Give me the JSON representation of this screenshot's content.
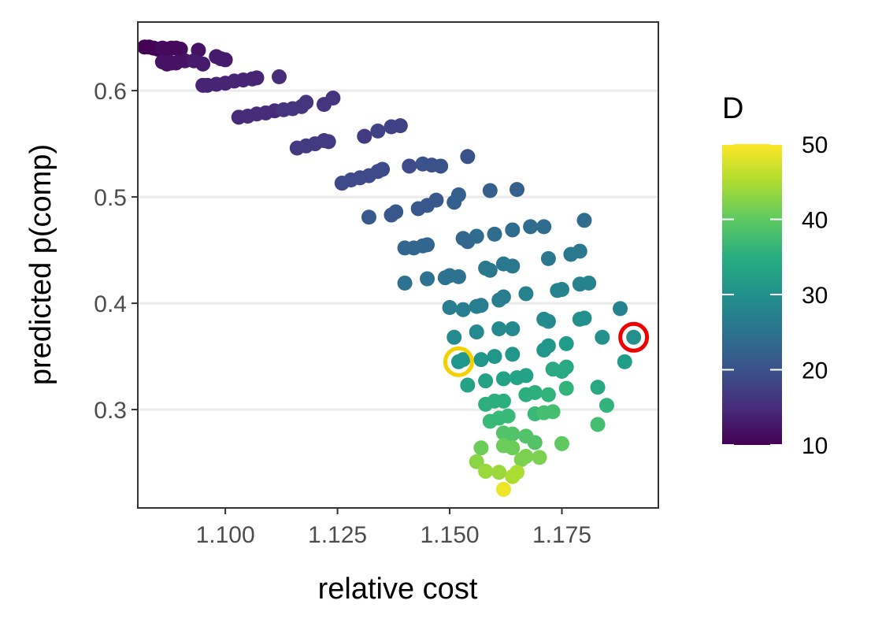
{
  "chart_data": {
    "type": "scatter",
    "title": "",
    "xlabel": "relative cost",
    "ylabel": "predicted p(comp)",
    "xlim": [
      1.0805,
      1.1965
    ],
    "ylim": [
      0.2075,
      0.6645
    ],
    "x_ticks": [
      1.1,
      1.125,
      1.15,
      1.175
    ],
    "x_tick_labels": [
      "1.100",
      "1.125",
      "1.150",
      "1.175"
    ],
    "y_ticks": [
      0.3,
      0.4,
      0.5,
      0.6
    ],
    "y_tick_labels": [
      "0.3",
      "0.4",
      "0.5",
      "0.6"
    ],
    "grid": "horizontal major lines",
    "legend": {
      "title": "D",
      "position": "right",
      "type": "colorbar",
      "colormap": "viridis",
      "range": [
        10,
        50
      ],
      "ticks": [
        10,
        20,
        30,
        40,
        50
      ],
      "tick_labels": [
        "10",
        "20",
        "30",
        "40",
        "50"
      ]
    },
    "highlights": [
      {
        "x": 1.152,
        "y": 0.345,
        "color": "#f5d000"
      },
      {
        "x": 1.191,
        "y": 0.368,
        "color": "#ee0000"
      }
    ],
    "points": [
      [
        1.082,
        0.641,
        10
      ],
      [
        1.083,
        0.641,
        10
      ],
      [
        1.084,
        0.64,
        10
      ],
      [
        1.085,
        0.639,
        10
      ],
      [
        1.086,
        0.64,
        11
      ],
      [
        1.087,
        0.639,
        11
      ],
      [
        1.088,
        0.64,
        11
      ],
      [
        1.089,
        0.64,
        11
      ],
      [
        1.09,
        0.639,
        11
      ],
      [
        1.094,
        0.638,
        12
      ],
      [
        1.086,
        0.627,
        12
      ],
      [
        1.087,
        0.625,
        12
      ],
      [
        1.088,
        0.626,
        12
      ],
      [
        1.089,
        0.626,
        12
      ],
      [
        1.091,
        0.628,
        12
      ],
      [
        1.093,
        0.628,
        13
      ],
      [
        1.095,
        0.625,
        13
      ],
      [
        1.098,
        0.632,
        13
      ],
      [
        1.099,
        0.63,
        13
      ],
      [
        1.1,
        0.629,
        13
      ],
      [
        1.095,
        0.605,
        14
      ],
      [
        1.096,
        0.605,
        14
      ],
      [
        1.098,
        0.606,
        14
      ],
      [
        1.1,
        0.607,
        14
      ],
      [
        1.102,
        0.609,
        14
      ],
      [
        1.104,
        0.61,
        14
      ],
      [
        1.106,
        0.611,
        14
      ],
      [
        1.107,
        0.612,
        14
      ],
      [
        1.112,
        0.613,
        15
      ],
      [
        1.103,
        0.575,
        15
      ],
      [
        1.105,
        0.576,
        15
      ],
      [
        1.107,
        0.578,
        15
      ],
      [
        1.109,
        0.579,
        15
      ],
      [
        1.111,
        0.581,
        15
      ],
      [
        1.113,
        0.582,
        16
      ],
      [
        1.115,
        0.583,
        16
      ],
      [
        1.117,
        0.585,
        16
      ],
      [
        1.118,
        0.589,
        16
      ],
      [
        1.122,
        0.587,
        16
      ],
      [
        1.124,
        0.593,
        16
      ],
      [
        1.116,
        0.546,
        17
      ],
      [
        1.118,
        0.548,
        17
      ],
      [
        1.12,
        0.55,
        17
      ],
      [
        1.122,
        0.553,
        17
      ],
      [
        1.123,
        0.552,
        17
      ],
      [
        1.131,
        0.557,
        17
      ],
      [
        1.134,
        0.562,
        18
      ],
      [
        1.137,
        0.566,
        18
      ],
      [
        1.139,
        0.567,
        18
      ],
      [
        1.126,
        0.513,
        19
      ],
      [
        1.128,
        0.516,
        19
      ],
      [
        1.13,
        0.518,
        19
      ],
      [
        1.132,
        0.52,
        19
      ],
      [
        1.134,
        0.524,
        19
      ],
      [
        1.135,
        0.526,
        19
      ],
      [
        1.141,
        0.529,
        19
      ],
      [
        1.144,
        0.531,
        20
      ],
      [
        1.146,
        0.53,
        20
      ],
      [
        1.148,
        0.529,
        20
      ],
      [
        1.154,
        0.538,
        20
      ],
      [
        1.132,
        0.481,
        21
      ],
      [
        1.137,
        0.483,
        21
      ],
      [
        1.138,
        0.486,
        21
      ],
      [
        1.143,
        0.489,
        21
      ],
      [
        1.145,
        0.492,
        21
      ],
      [
        1.147,
        0.497,
        21
      ],
      [
        1.151,
        0.495,
        22
      ],
      [
        1.152,
        0.502,
        22
      ],
      [
        1.159,
        0.506,
        22
      ],
      [
        1.165,
        0.507,
        22
      ],
      [
        1.14,
        0.452,
        23
      ],
      [
        1.142,
        0.452,
        23
      ],
      [
        1.144,
        0.454,
        23
      ],
      [
        1.145,
        0.455,
        23
      ],
      [
        1.153,
        0.461,
        23
      ],
      [
        1.154,
        0.458,
        23
      ],
      [
        1.156,
        0.463,
        24
      ],
      [
        1.16,
        0.465,
        24
      ],
      [
        1.164,
        0.469,
        24
      ],
      [
        1.168,
        0.472,
        24
      ],
      [
        1.171,
        0.472,
        24
      ],
      [
        1.18,
        0.478,
        24
      ],
      [
        1.14,
        0.419,
        25
      ],
      [
        1.145,
        0.423,
        25
      ],
      [
        1.149,
        0.424,
        25
      ],
      [
        1.15,
        0.426,
        25
      ],
      [
        1.152,
        0.425,
        25
      ],
      [
        1.158,
        0.433,
        26
      ],
      [
        1.159,
        0.431,
        26
      ],
      [
        1.162,
        0.437,
        26
      ],
      [
        1.164,
        0.435,
        26
      ],
      [
        1.172,
        0.442,
        26
      ],
      [
        1.177,
        0.446,
        26
      ],
      [
        1.179,
        0.449,
        26
      ],
      [
        1.15,
        0.396,
        27
      ],
      [
        1.153,
        0.394,
        27
      ],
      [
        1.156,
        0.397,
        27
      ],
      [
        1.157,
        0.398,
        27
      ],
      [
        1.161,
        0.403,
        27
      ],
      [
        1.162,
        0.406,
        27
      ],
      [
        1.167,
        0.409,
        28
      ],
      [
        1.174,
        0.412,
        28
      ],
      [
        1.175,
        0.413,
        28
      ],
      [
        1.179,
        0.418,
        28
      ],
      [
        1.181,
        0.419,
        28
      ],
      [
        1.188,
        0.395,
        28
      ],
      [
        1.151,
        0.368,
        29
      ],
      [
        1.156,
        0.373,
        29
      ],
      [
        1.161,
        0.376,
        29
      ],
      [
        1.164,
        0.376,
        29
      ],
      [
        1.171,
        0.385,
        29
      ],
      [
        1.172,
        0.383,
        29
      ],
      [
        1.179,
        0.385,
        30
      ],
      [
        1.18,
        0.386,
        30
      ],
      [
        1.184,
        0.368,
        30
      ],
      [
        1.191,
        0.368,
        30
      ],
      [
        1.152,
        0.345,
        31
      ],
      [
        1.153,
        0.347,
        31
      ],
      [
        1.157,
        0.347,
        31
      ],
      [
        1.16,
        0.35,
        31
      ],
      [
        1.164,
        0.352,
        31
      ],
      [
        1.171,
        0.356,
        31
      ],
      [
        1.172,
        0.36,
        31
      ],
      [
        1.176,
        0.362,
        32
      ],
      [
        1.189,
        0.345,
        32
      ],
      [
        1.154,
        0.323,
        33
      ],
      [
        1.158,
        0.327,
        33
      ],
      [
        1.162,
        0.329,
        33
      ],
      [
        1.165,
        0.33,
        33
      ],
      [
        1.167,
        0.332,
        33
      ],
      [
        1.173,
        0.338,
        34
      ],
      [
        1.175,
        0.336,
        34
      ],
      [
        1.176,
        0.34,
        34
      ],
      [
        1.183,
        0.321,
        34
      ],
      [
        1.158,
        0.305,
        35
      ],
      [
        1.16,
        0.308,
        35
      ],
      [
        1.162,
        0.308,
        35
      ],
      [
        1.167,
        0.314,
        35
      ],
      [
        1.169,
        0.316,
        35
      ],
      [
        1.172,
        0.314,
        36
      ],
      [
        1.176,
        0.32,
        36
      ],
      [
        1.185,
        0.304,
        36
      ],
      [
        1.159,
        0.289,
        37
      ],
      [
        1.161,
        0.292,
        37
      ],
      [
        1.163,
        0.294,
        37
      ],
      [
        1.169,
        0.296,
        37
      ],
      [
        1.171,
        0.297,
        38
      ],
      [
        1.173,
        0.298,
        38
      ],
      [
        1.183,
        0.286,
        38
      ],
      [
        1.162,
        0.278,
        39
      ],
      [
        1.164,
        0.277,
        39
      ],
      [
        1.167,
        0.275,
        39
      ],
      [
        1.169,
        0.269,
        39
      ],
      [
        1.175,
        0.268,
        40
      ],
      [
        1.157,
        0.264,
        41
      ],
      [
        1.162,
        0.266,
        41
      ],
      [
        1.164,
        0.264,
        41
      ],
      [
        1.166,
        0.253,
        42
      ],
      [
        1.167,
        0.256,
        42
      ],
      [
        1.17,
        0.255,
        42
      ],
      [
        1.156,
        0.251,
        43
      ],
      [
        1.158,
        0.242,
        44
      ],
      [
        1.161,
        0.241,
        44
      ],
      [
        1.164,
        0.237,
        45
      ],
      [
        1.165,
        0.241,
        45
      ],
      [
        1.162,
        0.225,
        49
      ]
    ]
  }
}
